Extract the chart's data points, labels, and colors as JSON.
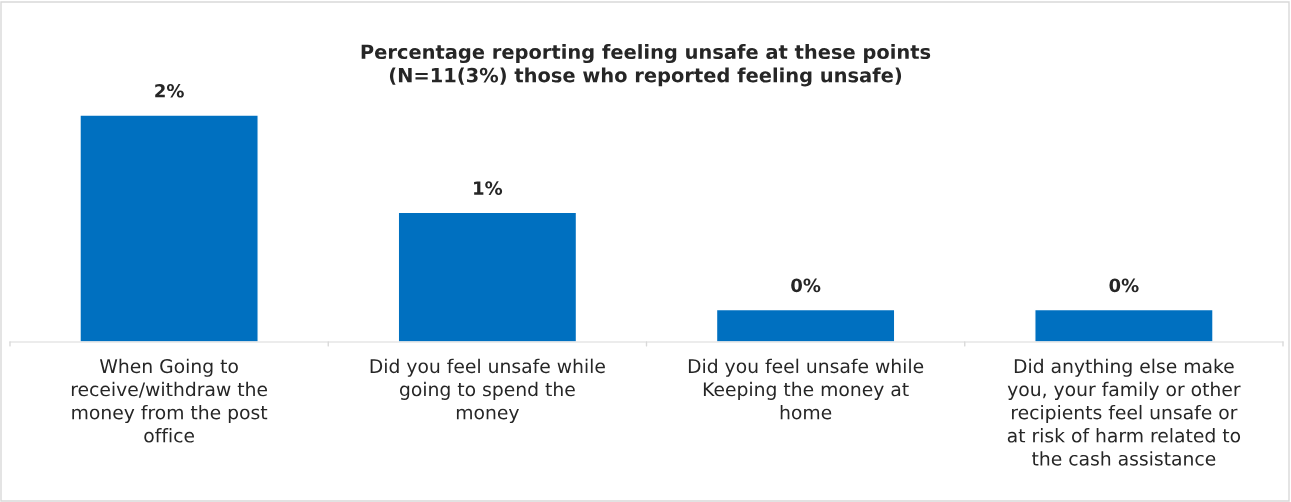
{
  "chart_data": {
    "type": "bar",
    "title": "Percentage reporting feeling unsafe at these points\n(N=11(3%) those who reported feeling unsafe)",
    "categories": [
      "When Going to\nreceive/withdraw the\nmoney from the post\noffice",
      "Did you feel unsafe while\ngoing to spend the\nmoney",
      "Did you feel unsafe while\nKeeping the money at\nhome",
      "Did anything else make\nyou, your family or other\nrecipients feel unsafe or\nat risk of harm related to\nthe cash assistance"
    ],
    "values": [
      1.75,
      1.0,
      0.25,
      0.25
    ],
    "color": "#0070c0",
    "tick_labels": "x",
    "value_labels": [
      "2%",
      "1%",
      "0%",
      "0%"
    ],
    "grid": false,
    "legend": false
  }
}
